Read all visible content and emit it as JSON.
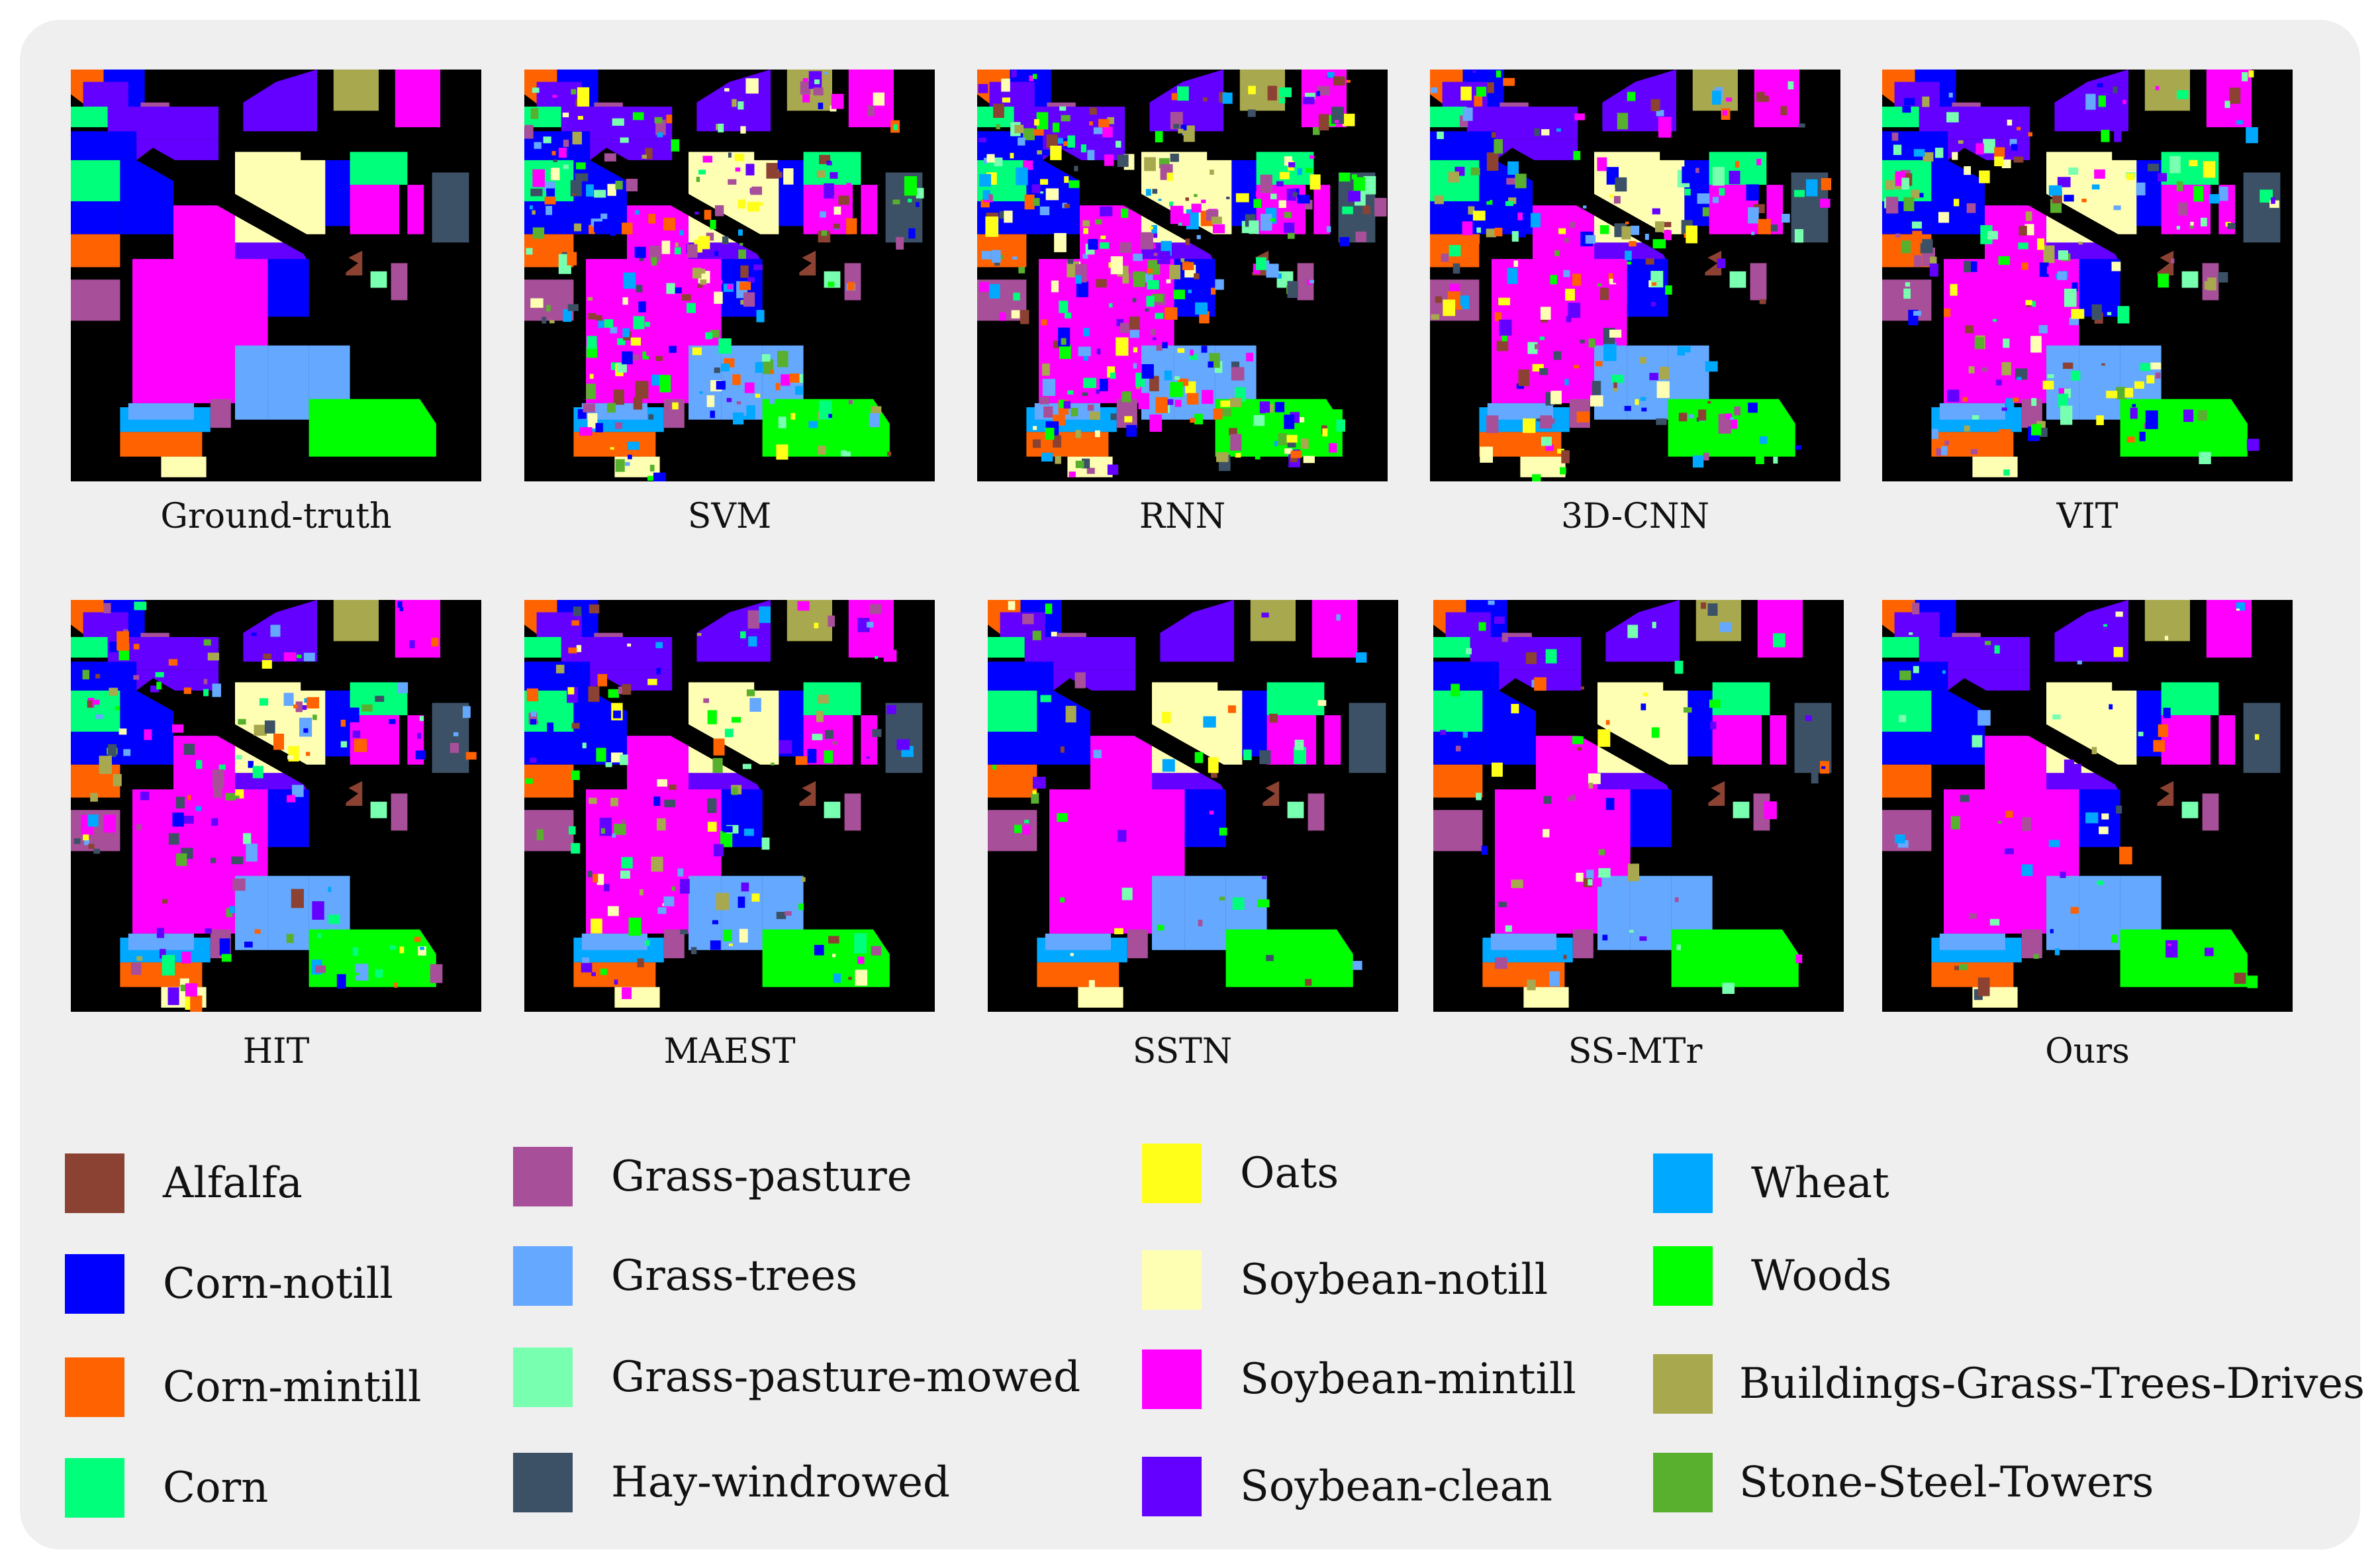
{
  "figure": {
    "rows": [
      [
        {
          "caption": "Ground-truth",
          "noise": 0.0
        },
        {
          "caption": "SVM",
          "noise": 0.55
        },
        {
          "caption": "RNN",
          "noise": 0.85
        },
        {
          "caption": "3D-CNN",
          "noise": 0.45
        },
        {
          "caption": "VIT",
          "noise": 0.4
        }
      ],
      [
        {
          "caption": "HIT",
          "noise": 0.35
        },
        {
          "caption": "MAEST",
          "noise": 0.3
        },
        {
          "caption": "SSTN",
          "noise": 0.08
        },
        {
          "caption": "SS-MTr",
          "noise": 0.15
        },
        {
          "caption": "Ours",
          "noise": 0.12
        }
      ]
    ]
  },
  "legend": [
    [
      {
        "label": "Alfalfa",
        "color": "#8B4232"
      },
      {
        "label": "Corn-notill",
        "color": "#0000FF"
      },
      {
        "label": "Corn-mintill",
        "color": "#FF6200"
      },
      {
        "label": "Corn",
        "color": "#00FF7A"
      }
    ],
    [
      {
        "label": "Grass-pasture",
        "color": "#A84F9A"
      },
      {
        "label": "Grass-trees",
        "color": "#64A8FF"
      },
      {
        "label": "Grass-pasture-mowed",
        "color": "#78FFB0"
      },
      {
        "label": "Hay-windrowed",
        "color": "#3D5166"
      }
    ],
    [
      {
        "label": "Oats",
        "color": "#FFFF1A"
      },
      {
        "label": "Soybean-notill",
        "color": "#FFFFB4"
      },
      {
        "label": "Soybean-mintill",
        "color": "#FF00FF"
      },
      {
        "label": "Soybean-clean",
        "color": "#6400FF"
      }
    ],
    [
      {
        "label": "Wheat",
        "color": "#00A8FF"
      },
      {
        "label": "Woods",
        "color": "#00FF00"
      },
      {
        "label": "Buildings-Grass-Trees-Drives",
        "color": "#A8A84F"
      },
      {
        "label": "Stone-Steel-Towers",
        "color": "#58B02E"
      }
    ]
  ]
}
